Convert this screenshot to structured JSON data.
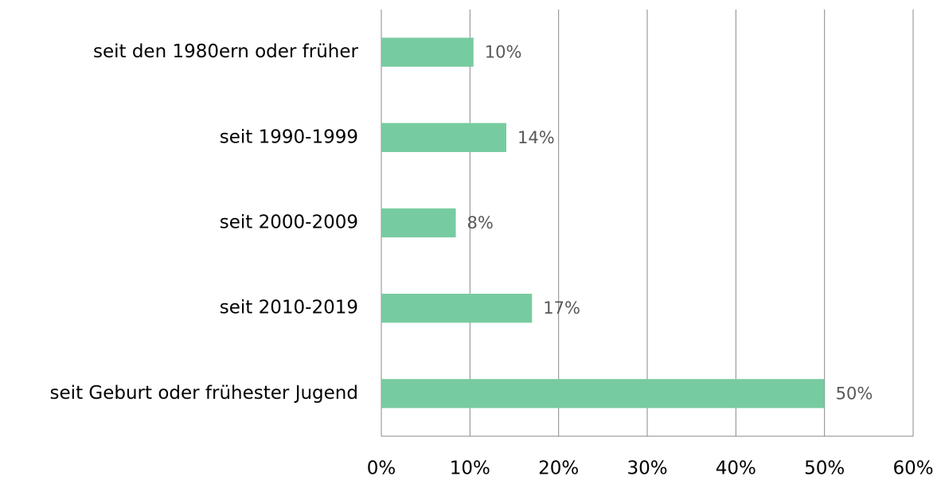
{
  "chart_data": {
    "type": "bar",
    "orientation": "horizontal",
    "categories": [
      "seit den 1980ern oder früher",
      "seit 1990-1999",
      "seit 2000-2009",
      "seit 2010-2019",
      "seit Geburt oder frühester Jugend"
    ],
    "values": [
      10.4,
      14.1,
      8.4,
      17,
      50
    ],
    "value_labels": [
      "10%",
      "14%",
      "8%",
      "17%",
      "50%"
    ],
    "color": "#77cba0",
    "xlim": [
      0,
      60
    ],
    "xticks": [
      {
        "value": 0,
        "label": "0%"
      },
      {
        "value": 10,
        "label": "10%"
      },
      {
        "value": 20,
        "label": "20%"
      },
      {
        "value": 30,
        "label": "30%"
      },
      {
        "value": 40,
        "label": "40%"
      },
      {
        "value": 50,
        "label": "50%"
      },
      {
        "value": 60,
        "label": "60%"
      }
    ],
    "grid": true
  }
}
